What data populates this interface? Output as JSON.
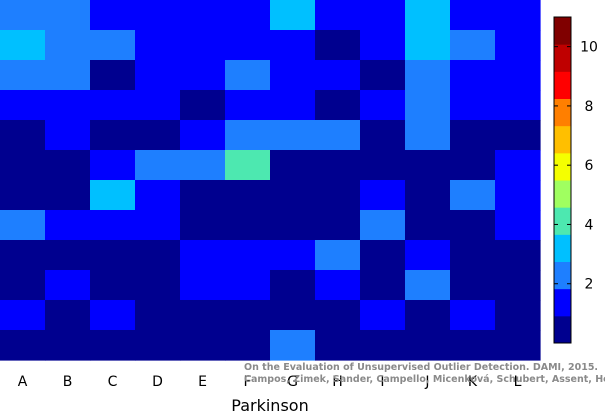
{
  "chart_data": {
    "type": "heatmap",
    "xlabel": "Parkinson",
    "ylabel": "",
    "title": "",
    "columns": [
      "A",
      "B",
      "C",
      "D",
      "E",
      "F",
      "G",
      "H",
      "I",
      "J",
      "K",
      "L"
    ],
    "rows_count": 12,
    "values": [
      [
        2.5,
        2.5,
        1.5,
        1.5,
        1.5,
        1.5,
        3.5,
        1.5,
        1.5,
        3.5,
        1.5,
        1.5
      ],
      [
        3.5,
        2.5,
        2.5,
        1.5,
        1.5,
        1.5,
        1.5,
        0.5,
        1.5,
        3.5,
        2.5,
        1.5
      ],
      [
        2.5,
        2.5,
        0.5,
        1.5,
        1.5,
        2.5,
        1.5,
        1.5,
        0.5,
        2.5,
        1.5,
        1.5
      ],
      [
        1.5,
        1.5,
        1.5,
        1.5,
        0.5,
        1.5,
        1.5,
        0.5,
        1.5,
        2.5,
        1.5,
        1.5
      ],
      [
        0.5,
        1.5,
        0.5,
        0.5,
        1.5,
        2.5,
        2.5,
        2.5,
        0.5,
        2.5,
        0.5,
        0.5
      ],
      [
        0.5,
        0.5,
        1.5,
        2.5,
        2.5,
        4.5,
        0.5,
        0.5,
        0.5,
        0.5,
        0.5,
        1.5
      ],
      [
        0.5,
        0.5,
        3.5,
        1.5,
        0.5,
        0.5,
        0.5,
        0.5,
        1.5,
        0.5,
        2.5,
        1.5
      ],
      [
        2.5,
        1.5,
        1.5,
        1.5,
        0.5,
        0.5,
        0.5,
        0.5,
        2.5,
        0.5,
        0.5,
        1.5
      ],
      [
        0.5,
        0.5,
        0.5,
        0.5,
        1.5,
        1.5,
        1.5,
        2.5,
        0.5,
        1.5,
        0.5,
        0.5
      ],
      [
        0.5,
        1.5,
        0.5,
        0.5,
        1.5,
        1.5,
        0.5,
        1.5,
        0.5,
        2.5,
        0.5,
        0.5
      ],
      [
        1.5,
        0.5,
        1.5,
        0.5,
        0.5,
        0.5,
        0.5,
        0.5,
        1.5,
        0.5,
        1.5,
        0.5
      ],
      [
        0.5,
        0.5,
        0.5,
        0.5,
        0.5,
        0.5,
        2.5,
        0.5,
        0.5,
        0.5,
        0.5,
        0.5
      ]
    ],
    "colorbar": {
      "min": 0,
      "max": 11,
      "ticks": [
        2,
        4,
        6,
        8,
        10
      ],
      "levels": [
        "#00008f",
        "#0000ff",
        "#1e7fff",
        "#00c0ff",
        "#4de8b0",
        "#a0ff60",
        "#f5ff00",
        "#ffbf00",
        "#ff7f00",
        "#ff0000",
        "#bf0000",
        "#800000"
      ]
    },
    "grid": false,
    "legend": "right"
  },
  "credit": {
    "line1": "On the Evaluation of Unsupervised Outlier Detection. DAMI, 2015.",
    "line2": "Campos, Zimek, Sander, Campello, Micenková, Schubert, Assent, Houle"
  }
}
